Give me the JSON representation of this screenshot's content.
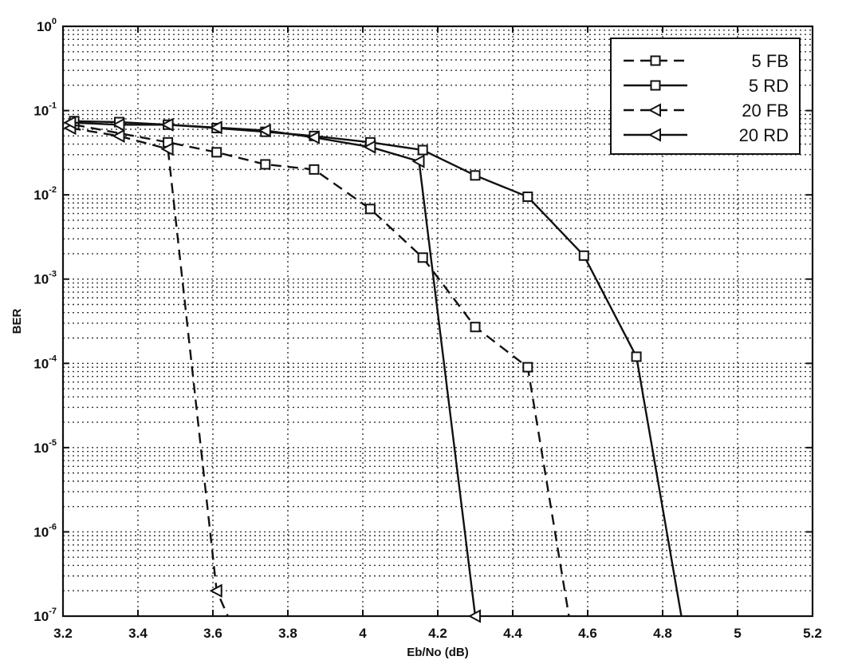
{
  "chart_data": {
    "type": "line",
    "title": "",
    "xlabel": "Eb/No (dB)",
    "ylabel": "BER",
    "xlim": [
      3.2,
      5.2
    ],
    "ylim": [
      1e-07,
      1
    ],
    "yscale": "log",
    "grid": true,
    "legend_position": "top-right",
    "x_ticks": [
      "3.2",
      "3.4",
      "3.6",
      "3.8",
      "4",
      "4.2",
      "4.4",
      "4.6",
      "4.8",
      "5",
      "5.2"
    ],
    "y_ticks": [
      {
        "base": "10",
        "exp": "0"
      },
      {
        "base": "10",
        "exp": "-1"
      },
      {
        "base": "10",
        "exp": "-2"
      },
      {
        "base": "10",
        "exp": "-3"
      },
      {
        "base": "10",
        "exp": "-4"
      },
      {
        "base": "10",
        "exp": "-5"
      },
      {
        "base": "10",
        "exp": "-6"
      },
      {
        "base": "10",
        "exp": "-7"
      }
    ],
    "series": [
      {
        "name": "5 FB",
        "dash": true,
        "marker": "square",
        "points": [
          [
            3.23,
            0.068
          ],
          [
            3.48,
            0.042
          ],
          [
            3.61,
            0.032
          ],
          [
            3.74,
            0.023
          ],
          [
            3.87,
            0.02
          ],
          [
            4.02,
            0.0068
          ],
          [
            4.16,
            0.0018
          ],
          [
            4.3,
            0.00027
          ],
          [
            4.44,
            9e-05
          ],
          [
            4.55,
            1e-07
          ]
        ],
        "marker_count": 9
      },
      {
        "name": "5 RD",
        "dash": false,
        "marker": "square",
        "points": [
          [
            3.23,
            0.075
          ],
          [
            3.35,
            0.073
          ],
          [
            3.48,
            0.068
          ],
          [
            3.61,
            0.062
          ],
          [
            3.74,
            0.056
          ],
          [
            3.87,
            0.05
          ],
          [
            4.02,
            0.042
          ],
          [
            4.16,
            0.034
          ],
          [
            4.3,
            0.017
          ],
          [
            4.44,
            0.0095
          ],
          [
            4.59,
            0.0019
          ],
          [
            4.73,
            0.00012
          ],
          [
            4.85,
            1e-07
          ]
        ],
        "marker_count": 12
      },
      {
        "name": "20 FB",
        "dash": true,
        "marker": "triangle-left",
        "points": [
          [
            3.22,
            0.062
          ],
          [
            3.35,
            0.05
          ],
          [
            3.48,
            0.035
          ],
          [
            3.61,
            2e-07
          ],
          [
            3.64,
            1e-07
          ]
        ],
        "marker_count": 4
      },
      {
        "name": "20 RD",
        "dash": false,
        "marker": "triangle-left",
        "points": [
          [
            3.22,
            0.072
          ],
          [
            3.35,
            0.068
          ],
          [
            3.48,
            0.068
          ],
          [
            3.61,
            0.063
          ],
          [
            3.74,
            0.058
          ],
          [
            3.87,
            0.048
          ],
          [
            4.02,
            0.037
          ],
          [
            4.15,
            0.025
          ],
          [
            4.3,
            1e-07
          ]
        ],
        "marker_count": 9
      }
    ]
  }
}
